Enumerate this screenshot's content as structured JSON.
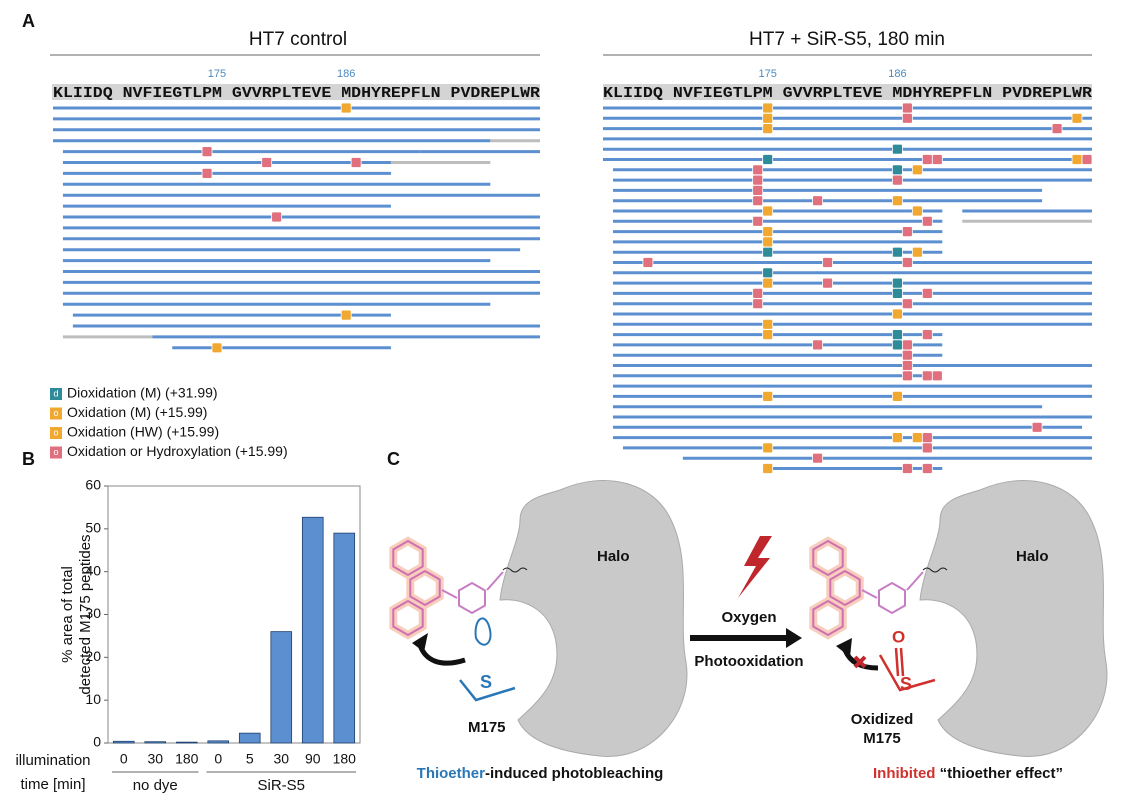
{
  "panel_labels": {
    "a": "A",
    "b": "B",
    "c": "C"
  },
  "panel_a": {
    "left_title": "HT7 control",
    "right_title": "HT7 + SiR-S5, 180 min",
    "sequence": "KLIIDQ NVFIEGTLPM GVVRPLTEVE MDHYREPFLN PVDREPLWR",
    "position_labels": [
      "175",
      "186"
    ],
    "legend": [
      {
        "label": "Dioxidation (M) (+31.99)",
        "symbol": "d",
        "color": "#2e8b9a"
      },
      {
        "label": "Oxidation (M) (+15.99)",
        "symbol": "o",
        "color": "#f0a830"
      },
      {
        "label": "Oxidation (HW) (+15.99)",
        "symbol": "o",
        "color": "#f0a830"
      },
      {
        "label": "Oxidation or Hydroxylation (+15.99)",
        "symbol": "o",
        "color": "#e0707e"
      }
    ]
  },
  "chart_data": {
    "type": "bar",
    "ylabel_lines": [
      "%  area of total",
      "detected M175 peptides"
    ],
    "xlabel_lines": [
      "illumination",
      "time [min]"
    ],
    "groups": [
      "no dye",
      "SiR-S5"
    ],
    "categories": [
      "0",
      "30",
      "180",
      "0",
      "5",
      "30",
      "90",
      "180"
    ],
    "values": [
      0.4,
      0.3,
      0.2,
      0.5,
      2.3,
      26,
      52.7,
      49
    ],
    "color": "#5b8fd0",
    "ylim": [
      0,
      60
    ],
    "yticks": [
      0,
      10,
      20,
      30,
      40,
      50,
      60
    ]
  },
  "panel_c": {
    "halo": "Halo",
    "residue": "M175",
    "gas": "Oxygen",
    "process": "Photooxidation",
    "oxidized": [
      "Oxidized",
      "M175"
    ],
    "sulfur": "S",
    "oxygen": "O",
    "caption_left": [
      "Thioether",
      "-induced photobleaching"
    ],
    "caption_right": [
      "Inhibited",
      " “thioether effect”"
    ]
  }
}
